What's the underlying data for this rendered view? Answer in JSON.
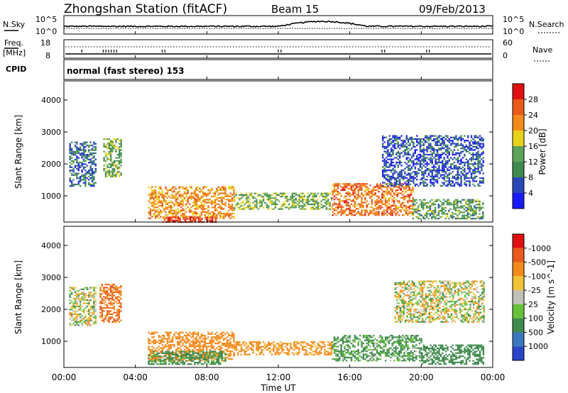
{
  "header": {
    "station": "Zhongshan Station (fitACF)",
    "beam": "Beam 15",
    "date": "09/Feb/2013"
  },
  "panels": {
    "nsky": {
      "left_label": "N.Sky",
      "right_label": "N.Search",
      "ticks_left": [
        "10^5",
        "10^0"
      ],
      "ticks_right": [
        "10^5",
        "10^0"
      ]
    },
    "freq": {
      "left_label_1": "Freq.",
      "left_label_2": "[MHz]",
      "right_label": "Nave",
      "ticks_left": [
        "18",
        "8"
      ],
      "ticks_right": [
        "60",
        "0"
      ]
    },
    "cpid": {
      "label": "CPID",
      "mode": "normal (fast stereo) 153"
    }
  },
  "chart_data": [
    {
      "type": "heatmap",
      "title": "",
      "x": [
        "00:00",
        "04:00",
        "08:00",
        "12:00",
        "16:00",
        "20:00",
        "00:00"
      ],
      "xlabel": "Time UT",
      "ylabel": "Slant Range [km]",
      "y_ticks": [
        1000,
        2000,
        3000,
        4000
      ],
      "ylim": [
        180,
        4600
      ],
      "xlim_hours": [
        0,
        24
      ],
      "colorbar": {
        "label": "Power [dB]",
        "ticks": [
          "4",
          "8",
          "12",
          "16",
          "20",
          "24",
          "28"
        ],
        "colors": [
          "#1a1aff",
          "#2a47b8",
          "#3f8a4e",
          "#5ea35a",
          "#e8d21c",
          "#f58a1c",
          "#ea5a1a",
          "#e01010"
        ]
      },
      "features": [
        {
          "hours": [
            4.7,
            9.5
          ],
          "range_km": [
            300,
            1300
          ],
          "level_dB": 22
        },
        {
          "hours": [
            9.5,
            15.0
          ],
          "range_km": [
            600,
            1100
          ],
          "level_dB": 14
        },
        {
          "hours": [
            15.0,
            19.5
          ],
          "range_km": [
            400,
            1400
          ],
          "level_dB": 24
        },
        {
          "hours": [
            19.5,
            23.5
          ],
          "range_km": [
            300,
            900
          ],
          "level_dB": 12
        },
        {
          "hours": [
            0.3,
            1.8
          ],
          "range_km": [
            1300,
            2700
          ],
          "level_dB": 8
        },
        {
          "hours": [
            2.2,
            3.2
          ],
          "range_km": [
            1600,
            2800
          ],
          "level_dB": 14
        },
        {
          "hours": [
            17.8,
            23.5
          ],
          "range_km": [
            1300,
            2900
          ],
          "level_dB": 6
        },
        {
          "hours": [
            5.5,
            8.5
          ],
          "range_km": [
            180,
            350
          ],
          "level_dB": 28
        }
      ]
    },
    {
      "type": "heatmap",
      "title": "",
      "x": [
        "00:00",
        "04:00",
        "08:00",
        "12:00",
        "16:00",
        "20:00",
        "00:00"
      ],
      "xlabel": "Time UT",
      "ylabel": "Slant Range [km]",
      "y_ticks": [
        1000,
        2000,
        3000,
        4000
      ],
      "ylim": [
        180,
        4600
      ],
      "xlim_hours": [
        0,
        24
      ],
      "colorbar": {
        "label": "Velocity [m s^-1]",
        "ticks": [
          "1000",
          "500",
          "100",
          "25",
          "-25",
          "-100",
          "-500",
          "-1000"
        ],
        "colors": [
          "#2a45c8",
          "#3b78c0",
          "#3f8a4e",
          "#66c23a",
          "#c0c0b8",
          "#f2c33a",
          "#f58a1c",
          "#ea5a1a",
          "#e01010"
        ]
      },
      "features": [
        {
          "hours": [
            4.7,
            9.5
          ],
          "range_km": [
            400,
            1300
          ],
          "velocity": -300
        },
        {
          "hours": [
            4.7,
            9.0
          ],
          "range_km": [
            300,
            700
          ],
          "velocity": 200
        },
        {
          "hours": [
            9.5,
            15.0
          ],
          "range_km": [
            600,
            1000
          ],
          "velocity": -200
        },
        {
          "hours": [
            15.0,
            20.0
          ],
          "range_km": [
            400,
            1200
          ],
          "velocity": 150
        },
        {
          "hours": [
            20.0,
            23.5
          ],
          "range_km": [
            300,
            900
          ],
          "velocity": 300
        },
        {
          "hours": [
            0.3,
            1.8
          ],
          "range_km": [
            1500,
            2700
          ],
          "velocity": 0
        },
        {
          "hours": [
            2.0,
            3.2
          ],
          "range_km": [
            1600,
            2800
          ],
          "velocity": -500
        },
        {
          "hours": [
            18.5,
            23.5
          ],
          "range_km": [
            1600,
            2900
          ],
          "velocity": 0
        }
      ]
    }
  ]
}
